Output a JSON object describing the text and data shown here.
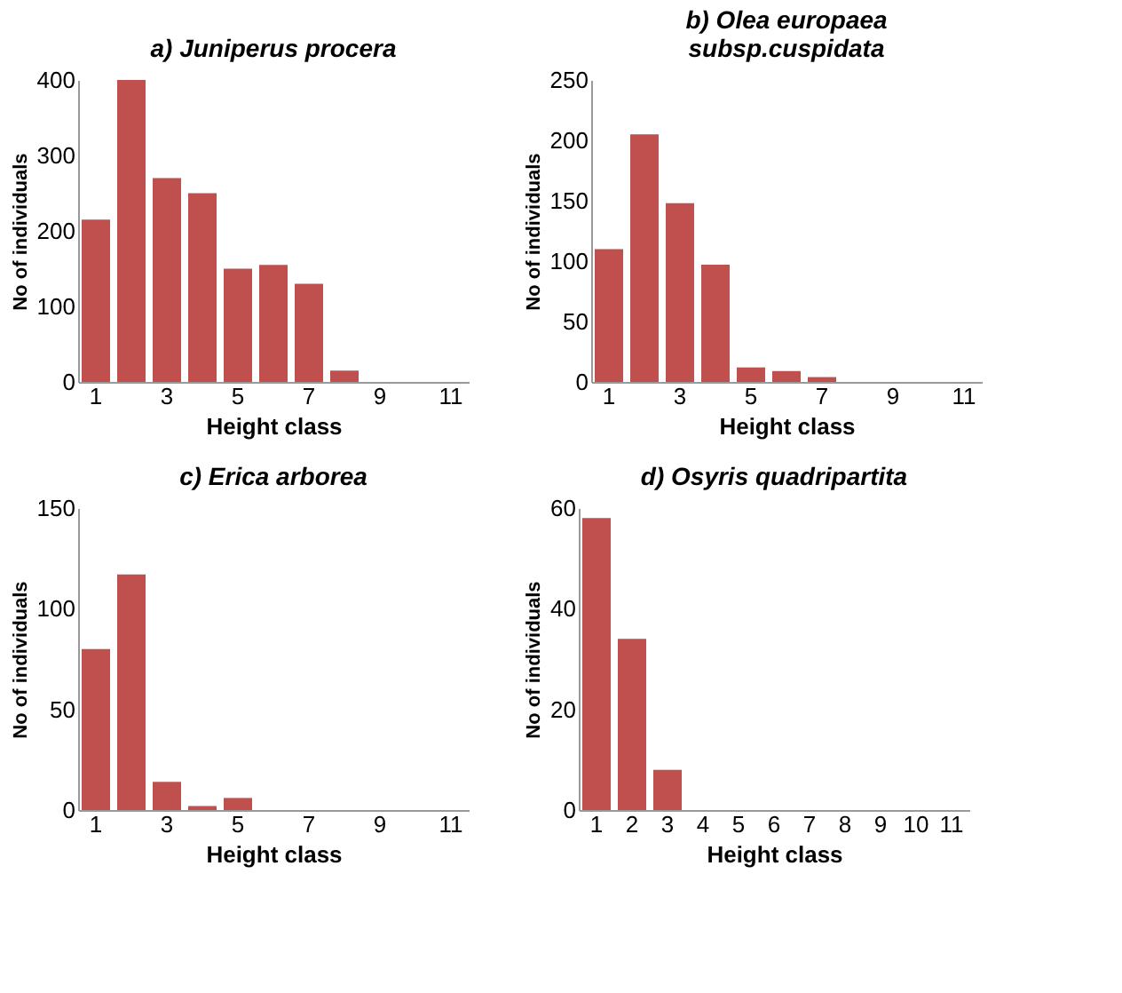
{
  "chart_data": [
    {
      "type": "bar",
      "title": "a) Juniperus procera",
      "xlabel": "Height class",
      "ylabel": "No of individuals",
      "categories": [
        "1",
        null,
        "3",
        null,
        "5",
        null,
        "7",
        null,
        "9",
        null,
        "11"
      ],
      "values": [
        215,
        400,
        270,
        250,
        150,
        155,
        130,
        15,
        0,
        0,
        0
      ],
      "color": "#c0504d",
      "ylim": [
        0,
        400
      ],
      "yticks": [
        0,
        100,
        200,
        300,
        400
      ],
      "grid": false
    },
    {
      "type": "bar",
      "title": "b) Olea europaea subsp.cuspidata",
      "xlabel": "Height class",
      "ylabel": "No of individuals",
      "categories": [
        "1",
        null,
        "3",
        null,
        "5",
        null,
        "7",
        null,
        "9",
        null,
        "11"
      ],
      "values": [
        110,
        205,
        148,
        97,
        12,
        9,
        4,
        0,
        0,
        0,
        0
      ],
      "color": "#c0504d",
      "ylim": [
        0,
        250
      ],
      "yticks": [
        0,
        50,
        100,
        150,
        200,
        250
      ],
      "grid": false
    },
    {
      "type": "bar",
      "title": "c) Erica arborea",
      "xlabel": "Height class",
      "ylabel": "No of individuals",
      "categories": [
        "1",
        null,
        "3",
        null,
        "5",
        null,
        "7",
        null,
        "9",
        null,
        "11"
      ],
      "values": [
        80,
        117,
        14,
        2,
        6,
        0,
        0,
        0,
        0,
        0,
        0
      ],
      "color": "#c0504d",
      "ylim": [
        0,
        150
      ],
      "yticks": [
        0,
        50,
        100,
        150
      ],
      "grid": false
    },
    {
      "type": "bar",
      "title": "d) Osyris quadripartita",
      "xlabel": "Height class",
      "ylabel": "No of individuals",
      "categories": [
        "1",
        "2",
        "3",
        "4",
        "5",
        "6",
        "7",
        "8",
        "9",
        "10",
        "11"
      ],
      "values": [
        58,
        34,
        8,
        0,
        0,
        0,
        0,
        0,
        0,
        0,
        0
      ],
      "color": "#c0504d",
      "ylim": [
        0,
        60
      ],
      "yticks": [
        0,
        20,
        40,
        60
      ],
      "grid": false
    }
  ]
}
